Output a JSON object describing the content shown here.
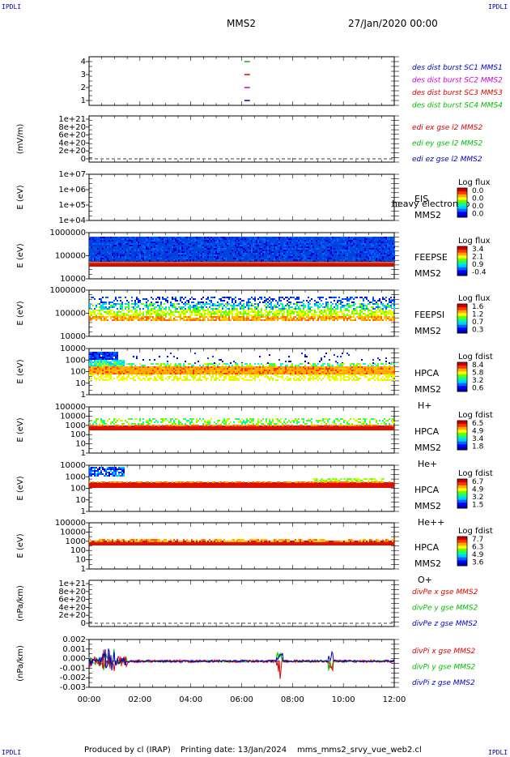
{
  "header": {
    "corner_tl": "IPDLI",
    "corner_tr": "IPDLI",
    "corner_bl": "IPDLI",
    "corner_br": "IPDLI",
    "spacecraft": "MMS2",
    "date": "27/Jan/2020 00:00"
  },
  "footer": {
    "produced": "Produced by cl (IRAP)",
    "printing": "Printing date: 13/Jan/2024",
    "file": "mms_mms2_srvy_vue_web2.cl"
  },
  "colors": {
    "red": "#dd0000",
    "green": "#00bb00",
    "blue": "#0000cc",
    "magenta": "#cc00cc",
    "dash": "#000000"
  },
  "chart_data": {
    "type": "multi-panel",
    "x_axis": {
      "ticks": [
        "00:00",
        "02:00",
        "04:00",
        "06:00",
        "08:00",
        "10:00",
        "12:00"
      ],
      "range_hours": [
        0,
        12
      ]
    },
    "panels": [
      {
        "id": "burst",
        "kind": "burst",
        "ylabel": "",
        "yticks": [
          "4",
          "3",
          "2",
          "1"
        ],
        "legend": [
          {
            "text": "des dist burst SC1 MMS1",
            "color": "#0000cc"
          },
          {
            "text": "des dist burst SC2 MMS2",
            "color": "#cc00cc"
          },
          {
            "text": "des dist burst SC3 MMS3",
            "color": "#dd0000"
          },
          {
            "text": "des dist burst SC4 MMS4",
            "color": "#00bb00"
          }
        ],
        "markers": [
          {
            "sc": 4,
            "t": 6.2,
            "color": "#00bb00"
          },
          {
            "sc": 3,
            "t": 6.2,
            "color": "#dd0000"
          },
          {
            "sc": 2,
            "t": 6.2,
            "color": "#cc00cc"
          },
          {
            "sc": 1,
            "t": 6.2,
            "color": "#0000cc"
          }
        ]
      },
      {
        "id": "edi",
        "kind": "line",
        "ylabel": "(mV/m)",
        "yticks": [
          "1e+21",
          "8e+20",
          "6e+20",
          "4e+20",
          "2e+20",
          "0"
        ],
        "legend": [
          {
            "text": "edi ex gse l2 MMS2",
            "color": "#dd0000"
          },
          {
            "text": "edi ey gse l2 MMS2",
            "color": "#00bb00"
          },
          {
            "text": "edi ez gse l2 MMS2",
            "color": "#0000cc"
          }
        ]
      },
      {
        "id": "eis",
        "kind": "spectro",
        "ylabel": "E (eV)",
        "yticks": [
          "1e+07",
          "1e+06",
          "1e+05",
          "1e+04"
        ],
        "label": [
          "EIS",
          "MMS2"
        ],
        "overlay_text": "heavy electron to",
        "cbar_title": "Log flux",
        "cbar_ticks": [
          "0.0",
          "0.0",
          "0.0",
          "0.0"
        ],
        "fill": "none"
      },
      {
        "id": "feepse",
        "kind": "spectro",
        "ylabel": "E (eV)",
        "yticks": [
          "1000000",
          "100000",
          "10000"
        ],
        "label": [
          "FEEPSE",
          "MMS2"
        ],
        "cbar_title": "Log flux",
        "cbar_ticks": [
          "3.4",
          "2.1",
          "0.9",
          "-0.4"
        ],
        "fill": "feepse"
      },
      {
        "id": "feepsi",
        "kind": "spectro",
        "ylabel": "E (eV)",
        "yticks": [
          "1000000",
          "100000",
          "10000"
        ],
        "label": [
          "FEEPSI",
          "MMS2"
        ],
        "cbar_title": "Log flux",
        "cbar_ticks": [
          "1.6",
          "1.2",
          "0.7",
          "0.3"
        ],
        "fill": "feepsi"
      },
      {
        "id": "hpca_h",
        "kind": "spectro",
        "ylabel": "E (eV)",
        "yticks": [
          "10000",
          "1000",
          "100",
          "10",
          "1"
        ],
        "label": [
          "HPCA",
          "MMS2",
          "H+"
        ],
        "cbar_title": "Log fdist",
        "cbar_ticks": [
          "8.4",
          "5.8",
          "3.2",
          "0.6"
        ],
        "fill": "hplus"
      },
      {
        "id": "hpca_he",
        "kind": "spectro",
        "ylabel": "E (eV)",
        "yticks": [
          "100000",
          "10000",
          "1000",
          "100",
          "10",
          "1"
        ],
        "label": [
          "HPCA",
          "MMS2",
          "He+"
        ],
        "cbar_title": "Log fdist",
        "cbar_ticks": [
          "6.5",
          "4.9",
          "3.4",
          "1.8"
        ],
        "fill": "heplus"
      },
      {
        "id": "hpca_hepp",
        "kind": "spectro",
        "ylabel": "E (eV)",
        "yticks": [
          "10000",
          "1000",
          "100",
          "10",
          "1"
        ],
        "label": [
          "HPCA",
          "MMS2",
          "He++"
        ],
        "cbar_title": "Log fdist",
        "cbar_ticks": [
          "6.7",
          "4.9",
          "3.2",
          "1.5"
        ],
        "fill": "heplusplus"
      },
      {
        "id": "hpca_o",
        "kind": "spectro",
        "ylabel": "E (eV)",
        "yticks": [
          "100000",
          "10000",
          "1000",
          "100",
          "10",
          "1"
        ],
        "label": [
          "HPCA",
          "MMS2",
          "O+"
        ],
        "cbar_title": "Log fdist",
        "cbar_ticks": [
          "7.7",
          "6.3",
          "4.9",
          "3.6"
        ],
        "fill": "oplus"
      },
      {
        "id": "divpe",
        "kind": "line",
        "ylabel": "(nPa/km)",
        "yticks": [
          "1e+21",
          "8e+20",
          "6e+20",
          "4e+20",
          "2e+20",
          "0"
        ],
        "legend": [
          {
            "text": "divPe x gse MMS2",
            "color": "#dd0000"
          },
          {
            "text": "divPe y gse MMS2",
            "color": "#00bb00"
          },
          {
            "text": "divPe z gse MMS2",
            "color": "#0000cc"
          }
        ]
      },
      {
        "id": "divpi",
        "kind": "divpi",
        "ylabel": "(nPa/km)",
        "yticks": [
          "0.002",
          "0.001",
          "0.000",
          "-0.001",
          "-0.002",
          "-0.003"
        ],
        "yrange": [
          -0.003,
          0.0025
        ],
        "legend": [
          {
            "text": "divPi x gse MMS2",
            "color": "#dd0000"
          },
          {
            "text": "divPi y gse MMS2",
            "color": "#00bb00"
          },
          {
            "text": "divPi z gse MMS2",
            "color": "#0000cc"
          }
        ]
      }
    ]
  }
}
